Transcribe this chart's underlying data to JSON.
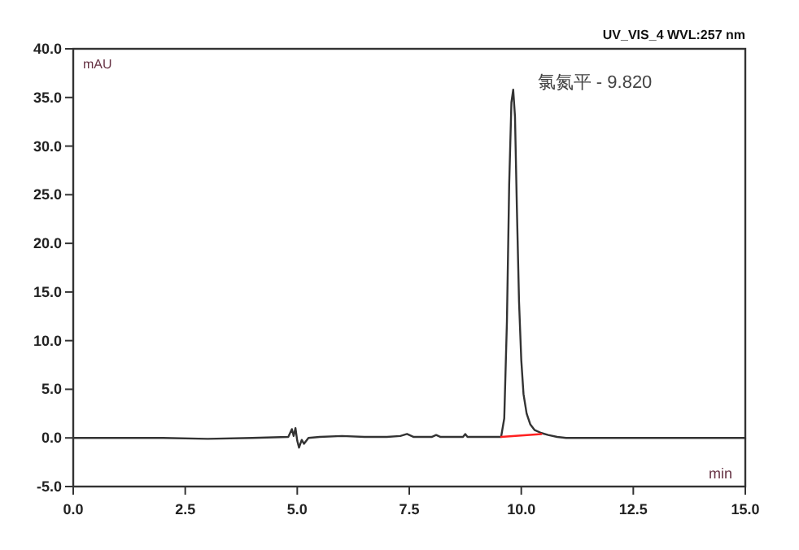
{
  "chart_data": {
    "type": "line",
    "title": "UV_VIS_4 WVL:257 nm",
    "xlabel": "min",
    "ylabel": "mAU",
    "xlim": [
      0,
      15
    ],
    "ylim": [
      -5,
      40
    ],
    "xticks": [
      {
        "value": 0,
        "label": "0.0"
      },
      {
        "value": 2.5,
        "label": "2.5"
      },
      {
        "value": 5,
        "label": "5.0"
      },
      {
        "value": 7.5,
        "label": "7.5"
      },
      {
        "value": 10,
        "label": "10.0"
      },
      {
        "value": 12.5,
        "label": "12.5"
      },
      {
        "value": 15,
        "label": "15.0"
      }
    ],
    "yticks": [
      {
        "value": -5,
        "label": "-5.0"
      },
      {
        "value": 0,
        "label": "0.0"
      },
      {
        "value": 5,
        "label": "5.0"
      },
      {
        "value": 10,
        "label": "10.0"
      },
      {
        "value": 15,
        "label": "15.0"
      },
      {
        "value": 20,
        "label": "20.0"
      },
      {
        "value": 25,
        "label": "25.0"
      },
      {
        "value": 30,
        "label": "30.0"
      },
      {
        "value": 35,
        "label": "35.0"
      },
      {
        "value": 40,
        "label": "40.0"
      }
    ],
    "grid": false,
    "series": [
      {
        "color": "#333333",
        "x": [
          0,
          1,
          2,
          3,
          4,
          4.8,
          4.88,
          4.92,
          4.96,
          5.0,
          5.04,
          5.1,
          5.15,
          5.25,
          5.5,
          6,
          6.5,
          7,
          7.3,
          7.45,
          7.6,
          8,
          8.1,
          8.2,
          8.7,
          8.75,
          8.8,
          9.2,
          9.55,
          9.62,
          9.68,
          9.73,
          9.78,
          9.82,
          9.86,
          9.9,
          9.95,
          10.0,
          10.05,
          10.12,
          10.2,
          10.3,
          10.45,
          10.6,
          10.8,
          11,
          12,
          13,
          14,
          15
        ],
        "values": [
          0,
          0,
          0,
          -0.1,
          0,
          0.1,
          0.9,
          0.2,
          1.0,
          -0.3,
          -1.0,
          -0.2,
          -0.6,
          0,
          0.1,
          0.2,
          0.1,
          0.1,
          0.2,
          0.4,
          0.1,
          0.1,
          0.3,
          0.1,
          0.1,
          0.4,
          0.1,
          0.1,
          0.1,
          2.0,
          12.0,
          26.0,
          34.5,
          35.8,
          33.0,
          24.0,
          14.0,
          8.0,
          4.5,
          2.5,
          1.4,
          0.8,
          0.5,
          0.3,
          0.1,
          0,
          0,
          0,
          0,
          0
        ]
      },
      {
        "color": "#ff2020",
        "x": [
          9.55,
          10.45
        ],
        "values": [
          0.1,
          0.4
        ]
      }
    ],
    "annotations": [
      {
        "text": "氯氮平 - 9.820",
        "x": 9.82,
        "y": 35.8
      }
    ]
  }
}
